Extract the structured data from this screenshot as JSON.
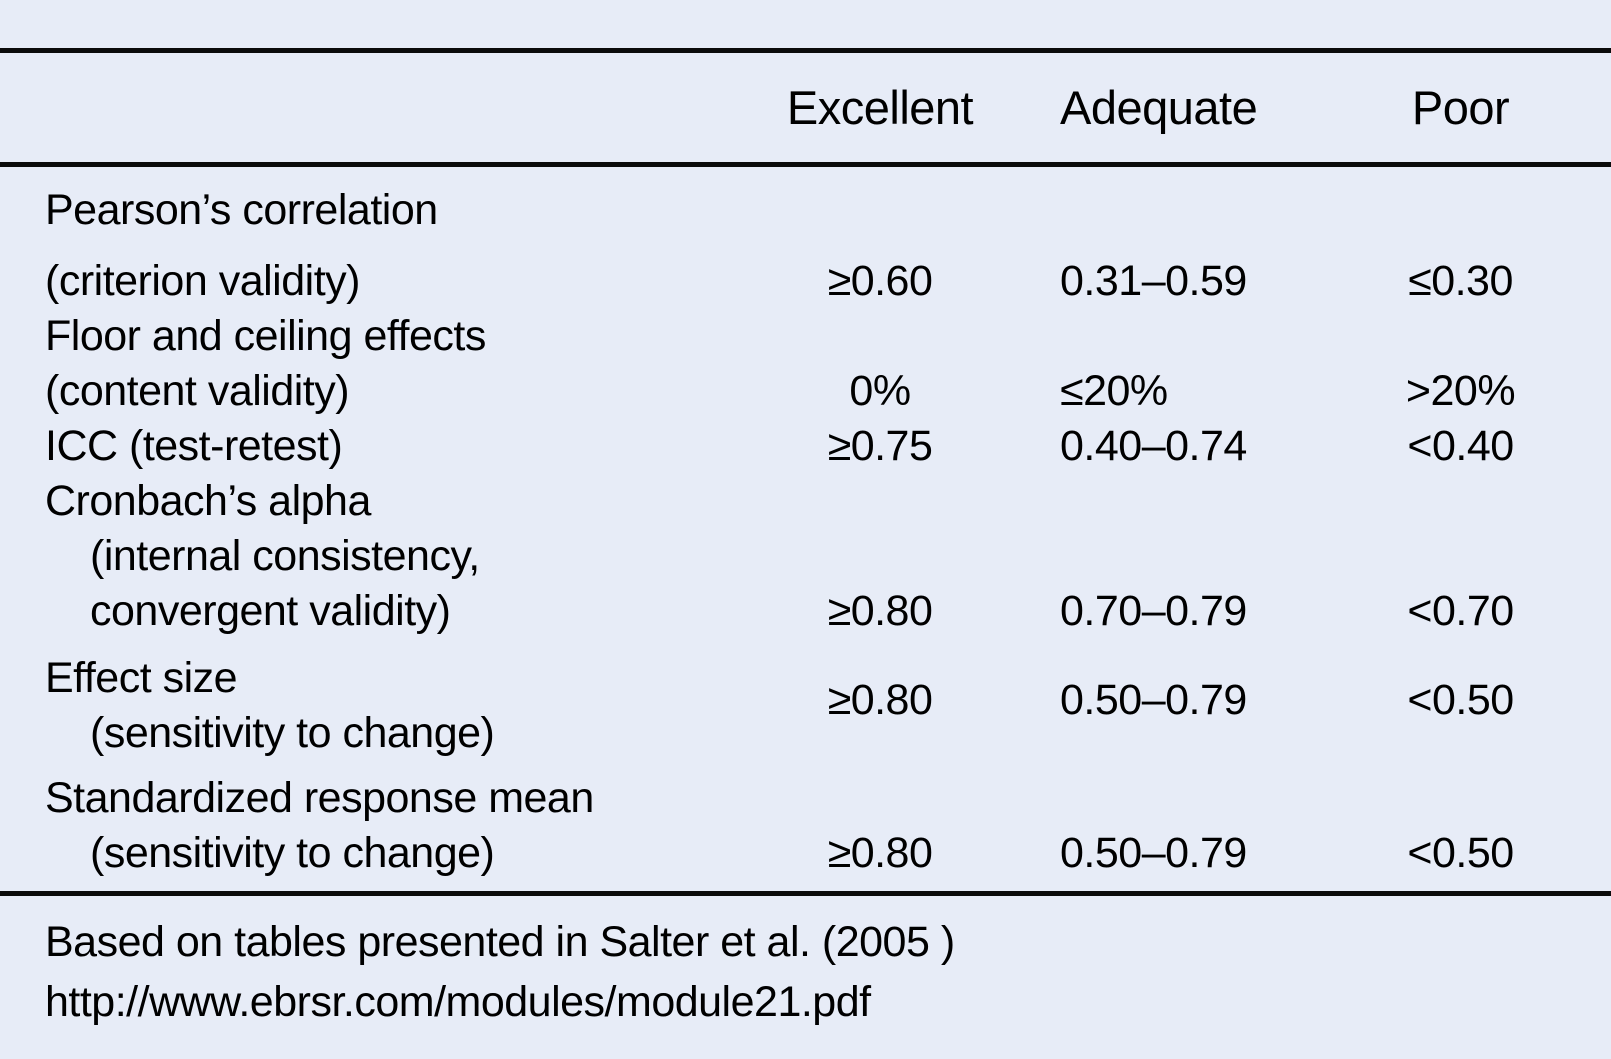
{
  "table": {
    "columns": [
      "Excellent",
      "Adequate",
      "Poor"
    ],
    "rows": [
      {
        "label_lines": [
          "Pearson’s correlation",
          "(criterion validity)"
        ],
        "values": [
          "≥0.60",
          "0.31–0.59",
          "≤0.30"
        ]
      },
      {
        "label_lines": [
          "Floor and ceiling effects",
          "(content validity)"
        ],
        "values": [
          "0%",
          "≤20%",
          ">20%"
        ]
      },
      {
        "label_lines": [
          "ICC (test-retest)"
        ],
        "values": [
          "≥0.75",
          "0.40–0.74",
          "<0.40"
        ]
      },
      {
        "label_lines": [
          "Cronbach’s alpha",
          "(internal consistency,",
          "convergent validity)"
        ],
        "values": [
          "≥0.80",
          "0.70–0.79",
          "<0.70"
        ]
      },
      {
        "label_lines": [
          "Effect size",
          "(sensitivity to change)"
        ],
        "values": [
          "≥0.80",
          "0.50–0.79",
          "<0.50"
        ]
      },
      {
        "label_lines": [
          "Standardized response mean",
          "(sensitivity to change)"
        ],
        "values": [
          "≥0.80",
          "0.50–0.79",
          "<0.50"
        ]
      }
    ]
  },
  "footer": {
    "line1": "Based on tables presented in Salter et al. (2005 )",
    "line2": "http://www.ebrsr.com/modules/module21.pdf"
  },
  "colors": {
    "background": "#e7ecf7",
    "rule": "#0b0b0b",
    "text": "#000000"
  }
}
